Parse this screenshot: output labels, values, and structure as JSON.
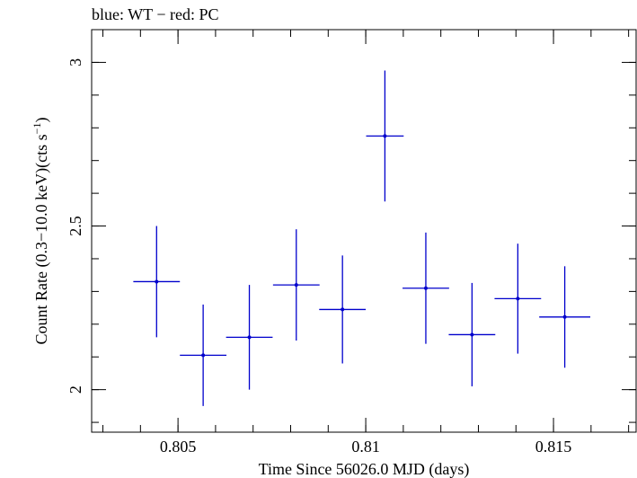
{
  "chart_data": {
    "type": "scatter",
    "title": "blue: WT − red: PC",
    "xlabel": "Time Since 56026.0 MJD (days)",
    "ylabel_main": "Count Rate (0.3−10.0 keV)(cts s",
    "ylabel_sup": "−1",
    "ylabel_end": ")",
    "xlim": [
      0.8027,
      0.8172
    ],
    "ylim": [
      1.87,
      3.1
    ],
    "x_ticks": [
      {
        "value": 0.805,
        "label": "0.805"
      },
      {
        "value": 0.81,
        "label": "0.81"
      },
      {
        "value": 0.815,
        "label": "0.815"
      }
    ],
    "x_minor_step": 0.001,
    "y_ticks": [
      {
        "value": 2.0,
        "label": "2"
      },
      {
        "value": 2.5,
        "label": "2.5"
      },
      {
        "value": 3.0,
        "label": "3"
      }
    ],
    "y_minor_step": 0.1,
    "grid": false,
    "series": [
      {
        "color": "#0000cc",
        "points": [
          {
            "x": 0.80443,
            "y": 2.33,
            "xerr": 0.00062,
            "yerr": 0.17
          },
          {
            "x": 0.80567,
            "y": 2.105,
            "xerr": 0.00062,
            "yerr": 0.155
          },
          {
            "x": 0.8069,
            "y": 2.16,
            "xerr": 0.00062,
            "yerr": 0.16
          },
          {
            "x": 0.80815,
            "y": 2.32,
            "xerr": 0.00062,
            "yerr": 0.17
          },
          {
            "x": 0.80938,
            "y": 2.245,
            "xerr": 0.00062,
            "yerr": 0.165
          },
          {
            "x": 0.81051,
            "y": 2.775,
            "xerr": 0.0005,
            "yerr": 0.2
          },
          {
            "x": 0.8116,
            "y": 2.31,
            "xerr": 0.00062,
            "yerr": 0.17
          },
          {
            "x": 0.81283,
            "y": 2.168,
            "xerr": 0.00062,
            "yerr": 0.158
          },
          {
            "x": 0.81405,
            "y": 2.278,
            "xerr": 0.00062,
            "yerr": 0.168
          },
          {
            "x": 0.8153,
            "y": 2.222,
            "xerr": 0.00068,
            "yerr": 0.155
          }
        ]
      }
    ]
  }
}
